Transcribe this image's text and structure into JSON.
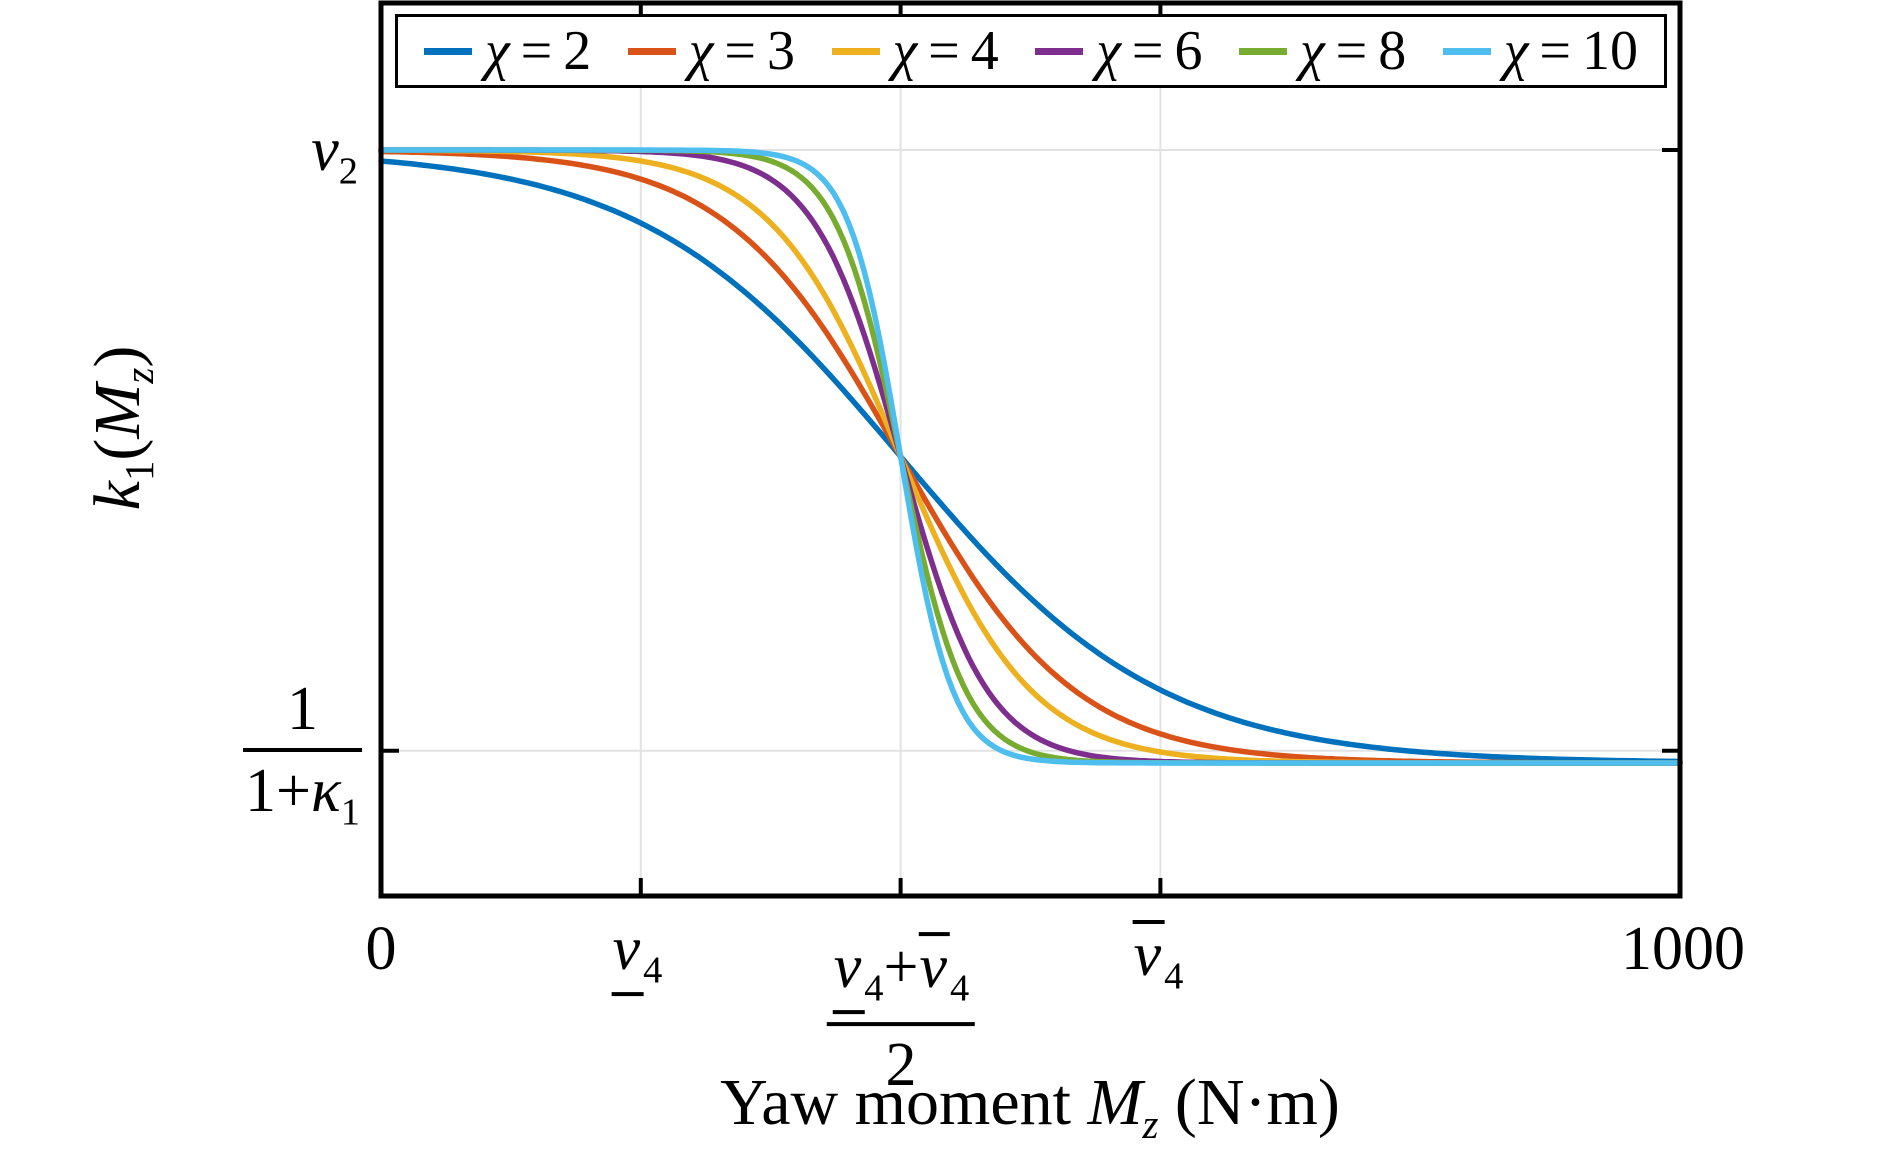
{
  "figure": {
    "background": "#ffffff",
    "frame_color": "#000000",
    "grid_color": "#e2e2e2",
    "text_color": "#000000"
  },
  "chart_data": {
    "type": "line",
    "title": "",
    "xlabel_text": "Yaw moment Mz (N·m)",
    "ylabel_text": "k1(Mz)",
    "xlabel_parts": {
      "prefix": "Yaw moment ",
      "var": "M",
      "var_sub": "z",
      "suffix": " (N·m)"
    },
    "ylabel_parts": {
      "var": "k",
      "var_sub": "1",
      "open": "(",
      "inner_var": "M",
      "inner_sub": "z",
      "close": ")"
    },
    "xlim": [
      0,
      1000
    ],
    "grid": true,
    "legend_position": "top-inside",
    "x_ticks": [
      {
        "value": 0,
        "text": "0",
        "gridline": false
      },
      {
        "value": 200,
        "text": "v̲4",
        "gridline": true
      },
      {
        "value": 400,
        "text": "(v̲4+v̄4)/2",
        "gridline": true
      },
      {
        "value": 600,
        "text": "v̄4",
        "gridline": true
      },
      {
        "value": 1000,
        "text": "1000",
        "gridline": false
      }
    ],
    "x_tick_0_label": "0",
    "x_tick_1_parts": {
      "base": "v",
      "sub": "4"
    },
    "x_tick_2_parts": {
      "num_v1": "v",
      "num_s1": "4",
      "plus": "+",
      "num_v2": "v",
      "num_s2": "4",
      "den": "2"
    },
    "x_tick_3_parts": {
      "base": "v",
      "sub": "4"
    },
    "x_tick_4_label": "1000",
    "y_ticks": [
      {
        "value_normalized": 1.0,
        "text": "v2",
        "gridline": true
      },
      {
        "value_normalized": 0.02,
        "text": "1/(1+κ1)",
        "gridline": true
      }
    ],
    "y_tick_top_parts": {
      "base": "v",
      "sub": "2"
    },
    "y_tick_bottom_parts": {
      "num": "1",
      "den_pre": "1+",
      "den_var": "κ",
      "den_sub": "1"
    },
    "model": {
      "form": "k1(Mz) = 1/(1+κ1) + (v2 - 1/(1+κ1)) / (1 + exp(χ·(Mz - (v̲4+v̄4)/2)/s))",
      "x_mid": 400,
      "x_scale": 200,
      "upper_normalized": 1,
      "lower_normalized": 0,
      "v4_lower": 200,
      "v4_upper": 600
    },
    "series": [
      {
        "name": "χ = 2",
        "symbol": "χ",
        "eq": "=",
        "value": "2",
        "chi": 2,
        "color": "#0072BD"
      },
      {
        "name": "χ = 3",
        "symbol": "χ",
        "eq": "=",
        "value": "3",
        "chi": 3,
        "color": "#D95319"
      },
      {
        "name": "χ = 4",
        "symbol": "χ",
        "eq": "=",
        "value": "4",
        "chi": 4,
        "color": "#EDB120"
      },
      {
        "name": "χ = 6",
        "symbol": "χ",
        "eq": "=",
        "value": "6",
        "chi": 6,
        "color": "#7E2F8E"
      },
      {
        "name": "χ = 8",
        "symbol": "χ",
        "eq": "=",
        "value": "8",
        "chi": 8,
        "color": "#77AC30"
      },
      {
        "name": "χ = 10",
        "symbol": "χ",
        "eq": "=",
        "value": "10",
        "chi": 10,
        "color": "#4DBEEE"
      }
    ]
  }
}
